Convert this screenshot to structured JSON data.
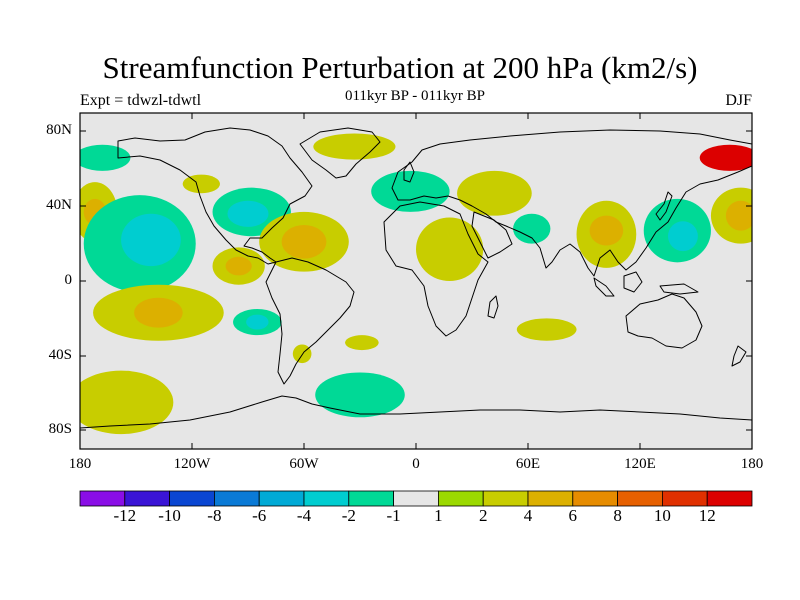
{
  "header": {
    "title": "Streamfunction Perturbation at 200 hPa (km2/s)",
    "left_label": "Expt = tdwzl-tdwtl",
    "center_label": "011kyr BP - 011kyr BP",
    "right_label": "DJF"
  },
  "map": {
    "projection": "cylindrical equidistant",
    "lon_range": [
      -180,
      180
    ],
    "lat_range": [
      -90,
      90
    ],
    "background_color": "#e6e6e6",
    "lat_ticks": [
      "80N",
      "40N",
      "0",
      "40S",
      "80S"
    ],
    "lon_ticks": [
      "180",
      "120W",
      "60W",
      "0",
      "60E",
      "120E",
      "180"
    ]
  },
  "colorbar": {
    "labels": [
      "-12",
      "-10",
      "-8",
      "-6",
      "-4",
      "-2",
      "-1",
      "1",
      "2",
      "4",
      "6",
      "8",
      "10",
      "12"
    ],
    "colors": [
      "#8a0ee6",
      "#3a14d6",
      "#0a46d2",
      "#0a7ad6",
      "#00aad6",
      "#00cdd0",
      "#00d996",
      "#e6e6e6",
      "#9bd900",
      "#c8cd00",
      "#dcb000",
      "#e68c00",
      "#e66000",
      "#e03000",
      "#dc0000"
    ]
  },
  "anomaly_regions": [
    {
      "lon": -172,
      "lat": 37,
      "rlon": 12,
      "rlat": 16,
      "level": "2"
    },
    {
      "lon": -172,
      "lat": 37,
      "rlon": 6,
      "rlat": 7,
      "level": "4"
    },
    {
      "lon": -148,
      "lat": 20,
      "rlon": 30,
      "rlat": 26,
      "level": "-1"
    },
    {
      "lon": -142,
      "lat": 22,
      "rlon": 16,
      "rlat": 14,
      "level": "-2"
    },
    {
      "lon": -138,
      "lat": -17,
      "rlon": 35,
      "rlat": 15,
      "level": "2"
    },
    {
      "lon": -138,
      "lat": -17,
      "rlon": 13,
      "rlat": 8,
      "level": "4"
    },
    {
      "lon": -158,
      "lat": -65,
      "rlon": 28,
      "rlat": 17,
      "level": "2"
    },
    {
      "lon": -168,
      "lat": 66,
      "rlon": 15,
      "rlat": 7,
      "level": "-1"
    },
    {
      "lon": -115,
      "lat": 52,
      "rlon": 10,
      "rlat": 5,
      "level": "2"
    },
    {
      "lon": -88,
      "lat": 37,
      "rlon": 21,
      "rlat": 13,
      "level": "-1"
    },
    {
      "lon": -90,
      "lat": 36,
      "rlon": 11,
      "rlat": 7,
      "level": "-2"
    },
    {
      "lon": -60,
      "lat": 21,
      "rlon": 24,
      "rlat": 16,
      "level": "2"
    },
    {
      "lon": -60,
      "lat": 21,
      "rlon": 12,
      "rlat": 9,
      "level": "4"
    },
    {
      "lon": -95,
      "lat": 8,
      "rlon": 14,
      "rlat": 10,
      "level": "2"
    },
    {
      "lon": -95,
      "lat": 8,
      "rlon": 7,
      "rlat": 5,
      "level": "4"
    },
    {
      "lon": -85,
      "lat": -22,
      "rlon": 13,
      "rlat": 7,
      "level": "-1"
    },
    {
      "lon": -85,
      "lat": -22,
      "rlon": 6,
      "rlat": 4,
      "level": "-2"
    },
    {
      "lon": -61,
      "lat": -39,
      "rlon": 5,
      "rlat": 5,
      "level": "2"
    },
    {
      "lon": -29,
      "lat": -33,
      "rlon": 9,
      "rlat": 4,
      "level": "2"
    },
    {
      "lon": -30,
      "lat": -61,
      "rlon": 24,
      "rlat": 12,
      "level": "-1"
    },
    {
      "lon": -33,
      "lat": 72,
      "rlon": 22,
      "rlat": 7,
      "level": "2"
    },
    {
      "lon": -3,
      "lat": 48,
      "rlon": 21,
      "rlat": 11,
      "level": "-1"
    },
    {
      "lon": 18,
      "lat": 17,
      "rlon": 18,
      "rlat": 17,
      "level": "2"
    },
    {
      "lon": 42,
      "lat": 47,
      "rlon": 20,
      "rlat": 12,
      "level": "2"
    },
    {
      "lon": 62,
      "lat": 28,
      "rlon": 10,
      "rlat": 8,
      "level": "-1"
    },
    {
      "lon": 70,
      "lat": -26,
      "rlon": 16,
      "rlat": 6,
      "level": "2"
    },
    {
      "lon": 102,
      "lat": 25,
      "rlon": 16,
      "rlat": 18,
      "level": "2"
    },
    {
      "lon": 102,
      "lat": 27,
      "rlon": 9,
      "rlat": 8,
      "level": "4"
    },
    {
      "lon": 140,
      "lat": 27,
      "rlon": 18,
      "rlat": 17,
      "level": "-1"
    },
    {
      "lon": 143,
      "lat": 24,
      "rlon": 8,
      "rlat": 8,
      "level": "-2"
    },
    {
      "lon": 174,
      "lat": 35,
      "rlon": 16,
      "rlat": 15,
      "level": "2"
    },
    {
      "lon": 174,
      "lat": 35,
      "rlon": 8,
      "rlat": 8,
      "level": "4"
    },
    {
      "lon": 168,
      "lat": 66,
      "rlon": 16,
      "rlat": 7,
      "level": "12"
    }
  ]
}
